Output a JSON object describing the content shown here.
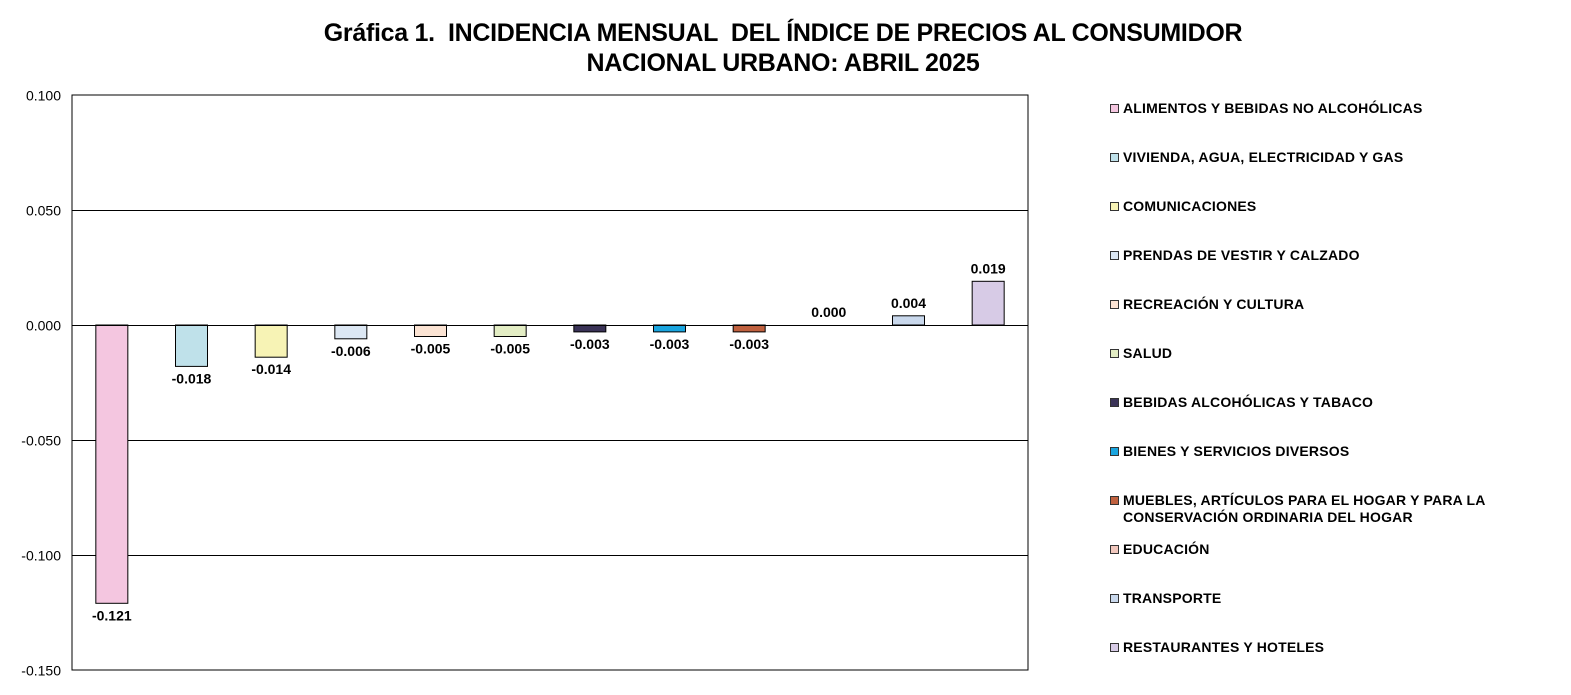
{
  "title": {
    "line1": "Gráfica 1.  INCIDENCIA MENSUAL  DEL ÍNDICE DE PRECIOS AL CONSUMIDOR",
    "line2": "NACIONAL URBANO: ABRIL 2025"
  },
  "chart_data": {
    "type": "bar",
    "title": "Gráfica 1.  INCIDENCIA MENSUAL  DEL ÍNDICE DE PRECIOS AL CONSUMIDOR NACIONAL URBANO: ABRIL 2025",
    "ylim": [
      -0.15,
      0.1
    ],
    "yticks": [
      0.1,
      0.05,
      0.0,
      -0.05,
      -0.1,
      -0.15
    ],
    "ytick_labels": [
      "0.100",
      "0.050",
      "0.000",
      "-0.050",
      "-0.100",
      "-0.150"
    ],
    "grid": true,
    "legend_position": "right",
    "series": [
      {
        "name": "ALIMENTOS Y BEBIDAS NO ALCOHÓLICAS",
        "value": -0.121,
        "label": "-0.121",
        "color": "#f4c6e0"
      },
      {
        "name": "VIVIENDA, AGUA, ELECTRICIDAD Y GAS",
        "value": -0.018,
        "label": "-0.018",
        "color": "#bfe1ea"
      },
      {
        "name": "COMUNICACIONES",
        "value": -0.014,
        "label": "-0.014",
        "color": "#f7f3b5"
      },
      {
        "name": "PRENDAS DE VESTIR Y CALZADO",
        "value": -0.006,
        "label": "-0.006",
        "color": "#dce7f3"
      },
      {
        "name": "RECREACIÓN Y CULTURA",
        "value": -0.005,
        "label": "-0.005",
        "color": "#fbe3d3"
      },
      {
        "name": "SALUD",
        "value": -0.005,
        "label": "-0.005",
        "color": "#e3edc4"
      },
      {
        "name": "BEBIDAS ALCOHÓLICAS Y TABACO",
        "value": -0.003,
        "label": "-0.003",
        "color": "#3a3357"
      },
      {
        "name": "BIENES Y SERVICIOS DIVERSOS",
        "value": -0.003,
        "label": "-0.003",
        "color": "#1aa5df"
      },
      {
        "name": "MUEBLES, ARTÍCULOS PARA EL HOGAR Y PARA LA CONSERVACIÓN ORDINARIA DEL HOGAR",
        "value": -0.003,
        "label": "-0.003",
        "color": "#c0613f",
        "legend_lines": [
          "MUEBLES, ARTÍCULOS PARA EL HOGAR Y PARA LA",
          "CONSERVACIÓN ORDINARIA DEL HOGAR"
        ]
      },
      {
        "name": "EDUCACIÓN",
        "value": 0.0,
        "label": "0.000",
        "color": "#f1c7bd"
      },
      {
        "name": "TRANSPORTE",
        "value": 0.004,
        "label": "0.004",
        "color": "#c9d8ec"
      },
      {
        "name": "RESTAURANTES Y HOTELES",
        "value": 0.019,
        "label": "0.019",
        "color": "#d7cbe6"
      }
    ]
  }
}
